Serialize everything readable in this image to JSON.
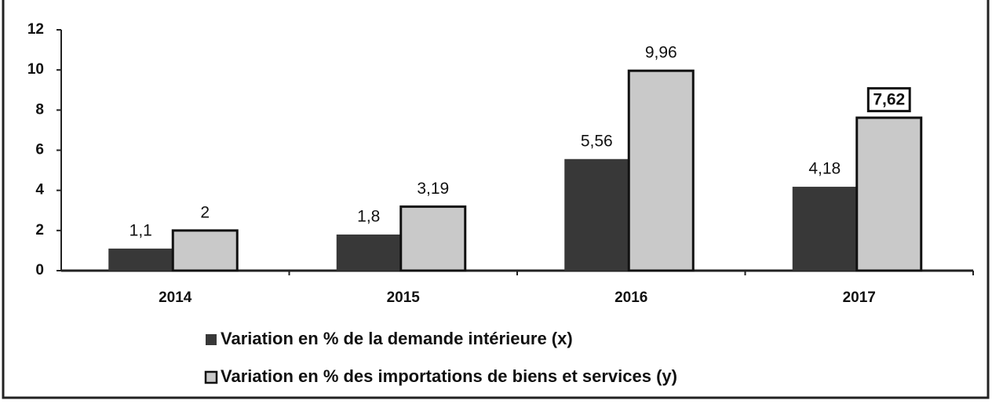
{
  "chart_data": {
    "type": "bar",
    "categories": [
      "2014",
      "2015",
      "2016",
      "2017"
    ],
    "series": [
      {
        "name": "Variation en % de la demande intérieure (x)",
        "color": "#383838",
        "values": [
          1.1,
          1.8,
          5.56,
          4.18
        ],
        "value_labels": [
          "1,1",
          "1,8",
          "5,56",
          "4,18"
        ]
      },
      {
        "name": "Variation en % des importations de biens et services (y)",
        "color": "#c9c9c9",
        "values": [
          2,
          3.19,
          9.96,
          7.62
        ],
        "value_labels": [
          "2",
          "3,19",
          "9,96",
          "7,62"
        ]
      }
    ],
    "ylim": [
      0,
      12
    ],
    "yticks": [
      0,
      2,
      4,
      6,
      8,
      10,
      12
    ],
    "grid": false
  }
}
